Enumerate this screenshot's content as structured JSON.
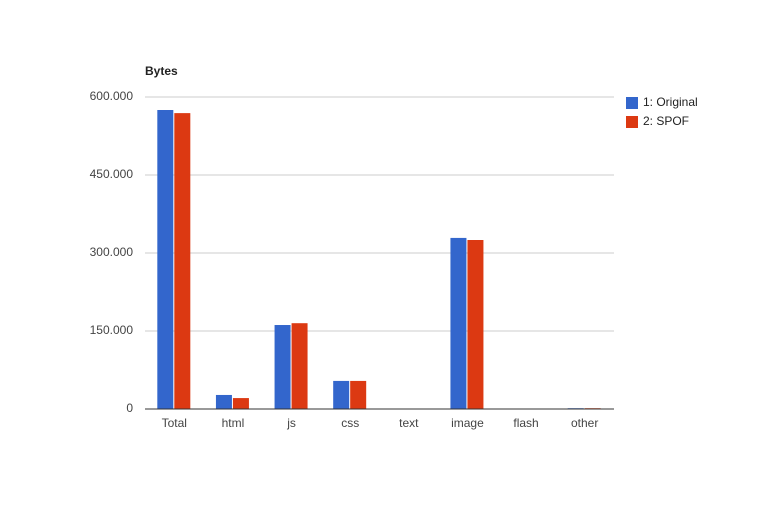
{
  "chart_data": {
    "type": "bar",
    "title": "Bytes",
    "categories": [
      "Total",
      "html",
      "js",
      "css",
      "text",
      "image",
      "flash",
      "other"
    ],
    "series": [
      {
        "name": "1: Original",
        "color": "#3366cc",
        "values": [
          575000,
          27000,
          161500,
          54000,
          0,
          329000,
          0,
          1500
        ]
      },
      {
        "name": "2: SPOF",
        "color": "#dc3912",
        "values": [
          569000,
          21000,
          165000,
          54000,
          0,
          325000,
          0,
          1500
        ]
      }
    ],
    "ylim": [
      0,
      600000
    ],
    "yticks": [
      0,
      {
        "value": 150000,
        "label": "150.000"
      },
      {
        "value": 300000,
        "label": "300.000"
      },
      {
        "value": 450000,
        "label": "450.000"
      },
      {
        "value": 600000,
        "label": "600.000"
      }
    ],
    "grid": true,
    "legend": "right"
  }
}
